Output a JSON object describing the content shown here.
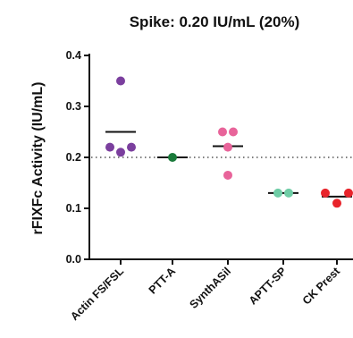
{
  "chart_data": {
    "type": "scatter",
    "title": "Spike: 0.20 IU/mL (20%)",
    "xlabel": "",
    "ylabel": "rFIXFc Activity (IU/mL)",
    "ylim": [
      0,
      0.4
    ],
    "yticks": [
      "0.0",
      "0.1",
      "0.2",
      "0.3",
      "0.4"
    ],
    "categories": [
      "Actin FS/FSL",
      "PTT-A",
      "SynthASil",
      "APTT-SP",
      "CK Prest"
    ],
    "reference_line": 0.2,
    "grid": false,
    "series": [
      {
        "category": "Actin FS/FSL",
        "color": "#7B3F9E",
        "values": [
          0.35,
          0.22,
          0.22,
          0.21
        ],
        "mean": 0.25
      },
      {
        "category": "PTT-A",
        "color": "#1A7A3A",
        "values": [
          0.2
        ],
        "mean": 0.2
      },
      {
        "category": "SynthASil",
        "color": "#E8649A",
        "values": [
          0.25,
          0.25,
          0.22,
          0.165
        ],
        "mean": 0.222
      },
      {
        "category": "APTT-SP",
        "color": "#6FCDA6",
        "values": [
          0.13,
          0.13
        ],
        "mean": 0.13
      },
      {
        "category": "CK Prest",
        "color": "#E8242B",
        "values": [
          0.13,
          0.13,
          0.11
        ],
        "mean": 0.123
      }
    ]
  }
}
